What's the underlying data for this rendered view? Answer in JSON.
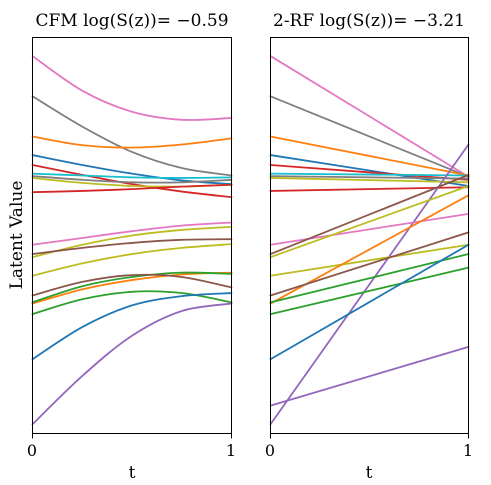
{
  "chart_data": [
    {
      "type": "line",
      "title": "CFM log(S(z))= −0.59",
      "xlabel": "t",
      "ylabel": "Latent Value",
      "xlim": [
        0,
        1
      ],
      "ylim": [
        -3.2,
        3.2
      ],
      "xticks": [
        "0",
        "1"
      ],
      "grid": false,
      "series": [
        {
          "color": "#e377c2",
          "x": [
            0,
            0.25,
            0.5,
            0.75,
            1
          ],
          "y": [
            2.9,
            2.34,
            2.0,
            1.87,
            1.9
          ]
        },
        {
          "color": "#7f7f7f",
          "x": [
            0,
            0.25,
            0.5,
            0.75,
            1
          ],
          "y": [
            2.25,
            1.76,
            1.35,
            1.09,
            0.97
          ]
        },
        {
          "color": "#ff7f0e",
          "x": [
            0,
            0.25,
            0.5,
            0.75,
            1
          ],
          "y": [
            1.6,
            1.46,
            1.42,
            1.47,
            1.57
          ]
        },
        {
          "color": "#1f77b4",
          "x": [
            0,
            0.25,
            0.5,
            0.75,
            1
          ],
          "y": [
            1.3,
            1.14,
            1.0,
            0.89,
            0.83
          ]
        },
        {
          "color": "#d62728",
          "x": [
            0,
            0.25,
            0.5,
            0.75,
            1
          ],
          "y": [
            1.14,
            0.98,
            0.83,
            0.71,
            0.62
          ]
        },
        {
          "color": "#17becf",
          "x": [
            0,
            0.25,
            0.5,
            0.75,
            1
          ],
          "y": [
            1.0,
            0.97,
            0.94,
            0.93,
            0.94
          ]
        },
        {
          "color": "#7f7f7f",
          "x": [
            0,
            0.25,
            0.5,
            0.75,
            1
          ],
          "y": [
            0.96,
            0.9,
            0.86,
            0.86,
            0.9
          ]
        },
        {
          "color": "#bcbd22",
          "x": [
            0,
            0.25,
            0.5,
            0.75,
            1
          ],
          "y": [
            0.93,
            0.85,
            0.8,
            0.79,
            0.82
          ]
        },
        {
          "color": "#d62728",
          "x": [
            0,
            0.25,
            0.5,
            0.75,
            1
          ],
          "y": [
            0.7,
            0.72,
            0.75,
            0.79,
            0.82
          ]
        },
        {
          "color": "#e377c2",
          "x": [
            0,
            0.25,
            0.5,
            0.75,
            1
          ],
          "y": [
            -0.15,
            -0.04,
            0.07,
            0.16,
            0.21
          ]
        },
        {
          "color": "#bcbd22",
          "x": [
            0,
            0.25,
            0.5,
            0.75,
            1
          ],
          "y": [
            -0.35,
            -0.15,
            0.0,
            0.09,
            0.14
          ]
        },
        {
          "color": "#8c564b",
          "x": [
            0,
            0.25,
            0.5,
            0.75,
            1
          ],
          "y": [
            -0.3,
            -0.2,
            -0.12,
            -0.07,
            -0.06
          ]
        },
        {
          "color": "#bcbd22",
          "x": [
            0,
            0.25,
            0.5,
            0.75,
            1
          ],
          "y": [
            -0.65,
            -0.45,
            -0.3,
            -0.2,
            -0.14
          ]
        },
        {
          "color": "#ff7f0e",
          "x": [
            0,
            0.25,
            0.5,
            0.75,
            1
          ],
          "y": [
            -1.1,
            -0.87,
            -0.72,
            -0.63,
            -0.6
          ]
        },
        {
          "color": "#2ca02c",
          "x": [
            0,
            0.25,
            0.5,
            0.75,
            1
          ],
          "y": [
            -1.08,
            -0.82,
            -0.67,
            -0.6,
            -0.62
          ]
        },
        {
          "color": "#8c564b",
          "x": [
            0,
            0.25,
            0.5,
            0.75,
            1
          ],
          "y": [
            -0.97,
            -0.75,
            -0.64,
            -0.67,
            -0.84
          ]
        },
        {
          "color": "#2ca02c",
          "x": [
            0,
            0.25,
            0.5,
            0.75,
            1
          ],
          "y": [
            -1.27,
            -1.03,
            -0.91,
            -0.93,
            -1.08
          ]
        },
        {
          "color": "#1f77b4",
          "x": [
            0,
            0.25,
            0.5,
            0.75,
            1
          ],
          "y": [
            -2.0,
            -1.48,
            -1.13,
            -0.98,
            -0.93
          ]
        },
        {
          "color": "#9467bd",
          "x": [
            0,
            0.25,
            0.5,
            0.75,
            1
          ],
          "y": [
            -3.05,
            -2.27,
            -1.62,
            -1.22,
            -1.1
          ]
        }
      ]
    },
    {
      "type": "line",
      "title": "2-RF log(S(z))= −3.21",
      "xlabel": "t",
      "ylabel": "",
      "xlim": [
        0,
        1
      ],
      "ylim": [
        -3.2,
        3.2
      ],
      "xticks": [
        "0",
        "1"
      ],
      "grid": false,
      "series": [
        {
          "color": "#e377c2",
          "x": [
            0,
            1
          ],
          "y": [
            2.9,
            0.95
          ]
        },
        {
          "color": "#7f7f7f",
          "x": [
            0,
            1
          ],
          "y": [
            2.25,
            0.95
          ]
        },
        {
          "color": "#ff7f0e",
          "x": [
            0,
            1
          ],
          "y": [
            1.6,
            0.97
          ]
        },
        {
          "color": "#1f77b4",
          "x": [
            0,
            1
          ],
          "y": [
            1.3,
            0.8
          ]
        },
        {
          "color": "#d62728",
          "x": [
            0,
            1
          ],
          "y": [
            1.14,
            0.9
          ]
        },
        {
          "color": "#17becf",
          "x": [
            0,
            1
          ],
          "y": [
            1.0,
            0.97
          ]
        },
        {
          "color": "#7f7f7f",
          "x": [
            0,
            1
          ],
          "y": [
            0.96,
            0.92
          ]
        },
        {
          "color": "#bcbd22",
          "x": [
            0,
            1
          ],
          "y": [
            0.93,
            0.86
          ]
        },
        {
          "color": "#d62728",
          "x": [
            0,
            1
          ],
          "y": [
            0.72,
            0.78
          ]
        },
        {
          "color": "#9467bd",
          "x": [
            0,
            1
          ],
          "y": [
            -3.05,
            1.47
          ]
        },
        {
          "color": "#e377c2",
          "x": [
            0,
            1
          ],
          "y": [
            -0.15,
            0.35
          ]
        },
        {
          "color": "#bcbd22",
          "x": [
            0,
            1
          ],
          "y": [
            -0.35,
            0.8
          ]
        },
        {
          "color": "#8c564b",
          "x": [
            0,
            1
          ],
          "y": [
            -0.3,
            0.98
          ]
        },
        {
          "color": "#bcbd22",
          "x": [
            0,
            1
          ],
          "y": [
            -0.65,
            -0.15
          ]
        },
        {
          "color": "#ff7f0e",
          "x": [
            0,
            1
          ],
          "y": [
            -1.1,
            0.65
          ]
        },
        {
          "color": "#2ca02c",
          "x": [
            0,
            1
          ],
          "y": [
            -1.08,
            -0.3
          ]
        },
        {
          "color": "#8c564b",
          "x": [
            0,
            1
          ],
          "y": [
            -0.97,
            0.05
          ]
        },
        {
          "color": "#2ca02c",
          "x": [
            0,
            1
          ],
          "y": [
            -1.27,
            -0.52
          ]
        },
        {
          "color": "#1f77b4",
          "x": [
            0,
            1
          ],
          "y": [
            -2.0,
            -0.15
          ]
        },
        {
          "color": "#9467bd",
          "x": [
            0,
            1
          ],
          "y": [
            -2.75,
            -1.8
          ]
        }
      ]
    }
  ]
}
